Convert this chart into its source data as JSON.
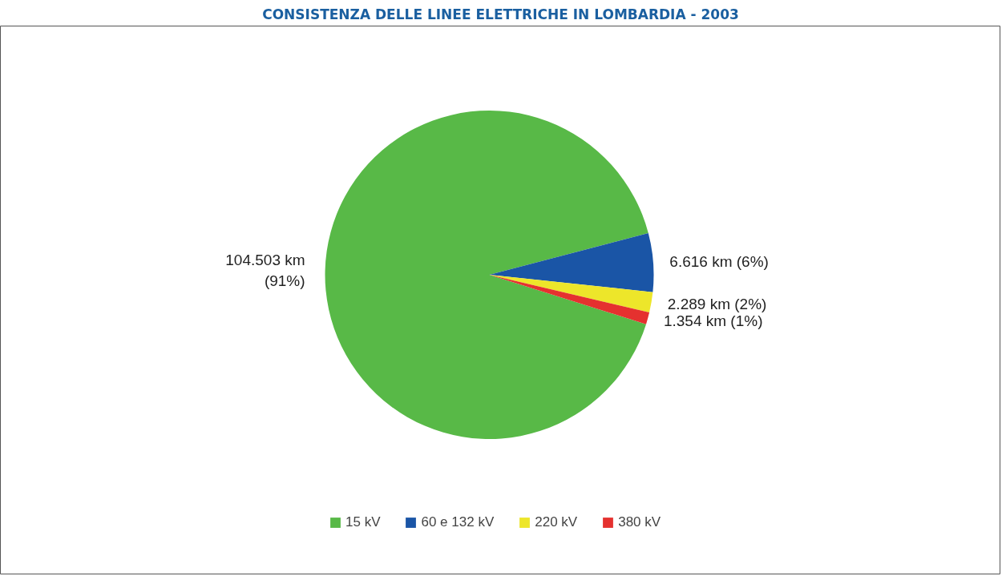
{
  "chart_data": {
    "type": "pie",
    "title": "CONSISTENZA DELLE LINEE ELETTRICHE IN LOMBARDIA - 2003",
    "categories": [
      "15 kV",
      "60 e 132 kV",
      "220 kV",
      "380 kV"
    ],
    "values": [
      104503,
      6616,
      2289,
      1354
    ],
    "colors": [
      "#58b947",
      "#1a55a6",
      "#ede62a",
      "#e5312f"
    ],
    "value_labels": [
      "104.503 km\n(91%)",
      "6.616 km (6%)",
      "2.289 km (2%)",
      "1.354 km (1%)"
    ],
    "legend": "bottom"
  }
}
